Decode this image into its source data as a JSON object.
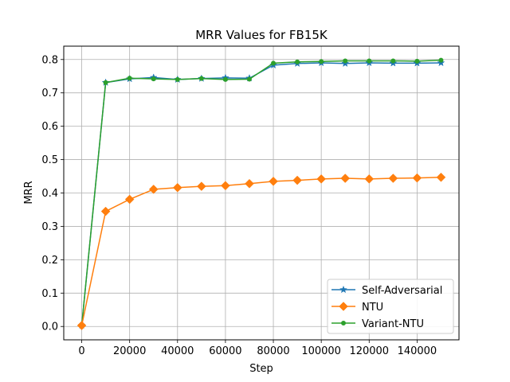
{
  "chart_data": {
    "type": "line",
    "title": "MRR Values for FB15K",
    "xlabel": "Step",
    "ylabel": "MRR",
    "xlim": [
      -7500,
      157500
    ],
    "ylim": [
      -0.04,
      0.84
    ],
    "xticks": [
      0,
      20000,
      40000,
      60000,
      80000,
      100000,
      120000,
      140000
    ],
    "yticks": [
      0.0,
      0.1,
      0.2,
      0.3,
      0.4,
      0.5,
      0.6,
      0.7,
      0.8
    ],
    "grid": true,
    "legend_position": "lower-right",
    "x": [
      0,
      10000,
      20000,
      30000,
      40000,
      50000,
      60000,
      70000,
      80000,
      90000,
      100000,
      110000,
      120000,
      130000,
      140000,
      150000
    ],
    "series": [
      {
        "name": "Self-Adversarial",
        "color": "#1f77b4",
        "marker": "star",
        "values": [
          0.003,
          0.731,
          0.742,
          0.746,
          0.74,
          0.743,
          0.745,
          0.744,
          0.783,
          0.788,
          0.79,
          0.788,
          0.79,
          0.789,
          0.789,
          0.79
        ]
      },
      {
        "name": "NTU",
        "color": "#ff7f0e",
        "marker": "diamond",
        "values": [
          0.003,
          0.345,
          0.381,
          0.411,
          0.416,
          0.42,
          0.422,
          0.428,
          0.435,
          0.438,
          0.442,
          0.444,
          0.442,
          0.444,
          0.445,
          0.447
        ]
      },
      {
        "name": "Variant-NTU",
        "color": "#2ca02c",
        "marker": "circle",
        "values": [
          0.003,
          0.731,
          0.744,
          0.742,
          0.74,
          0.743,
          0.74,
          0.741,
          0.789,
          0.793,
          0.794,
          0.796,
          0.796,
          0.796,
          0.795,
          0.798
        ]
      }
    ]
  }
}
